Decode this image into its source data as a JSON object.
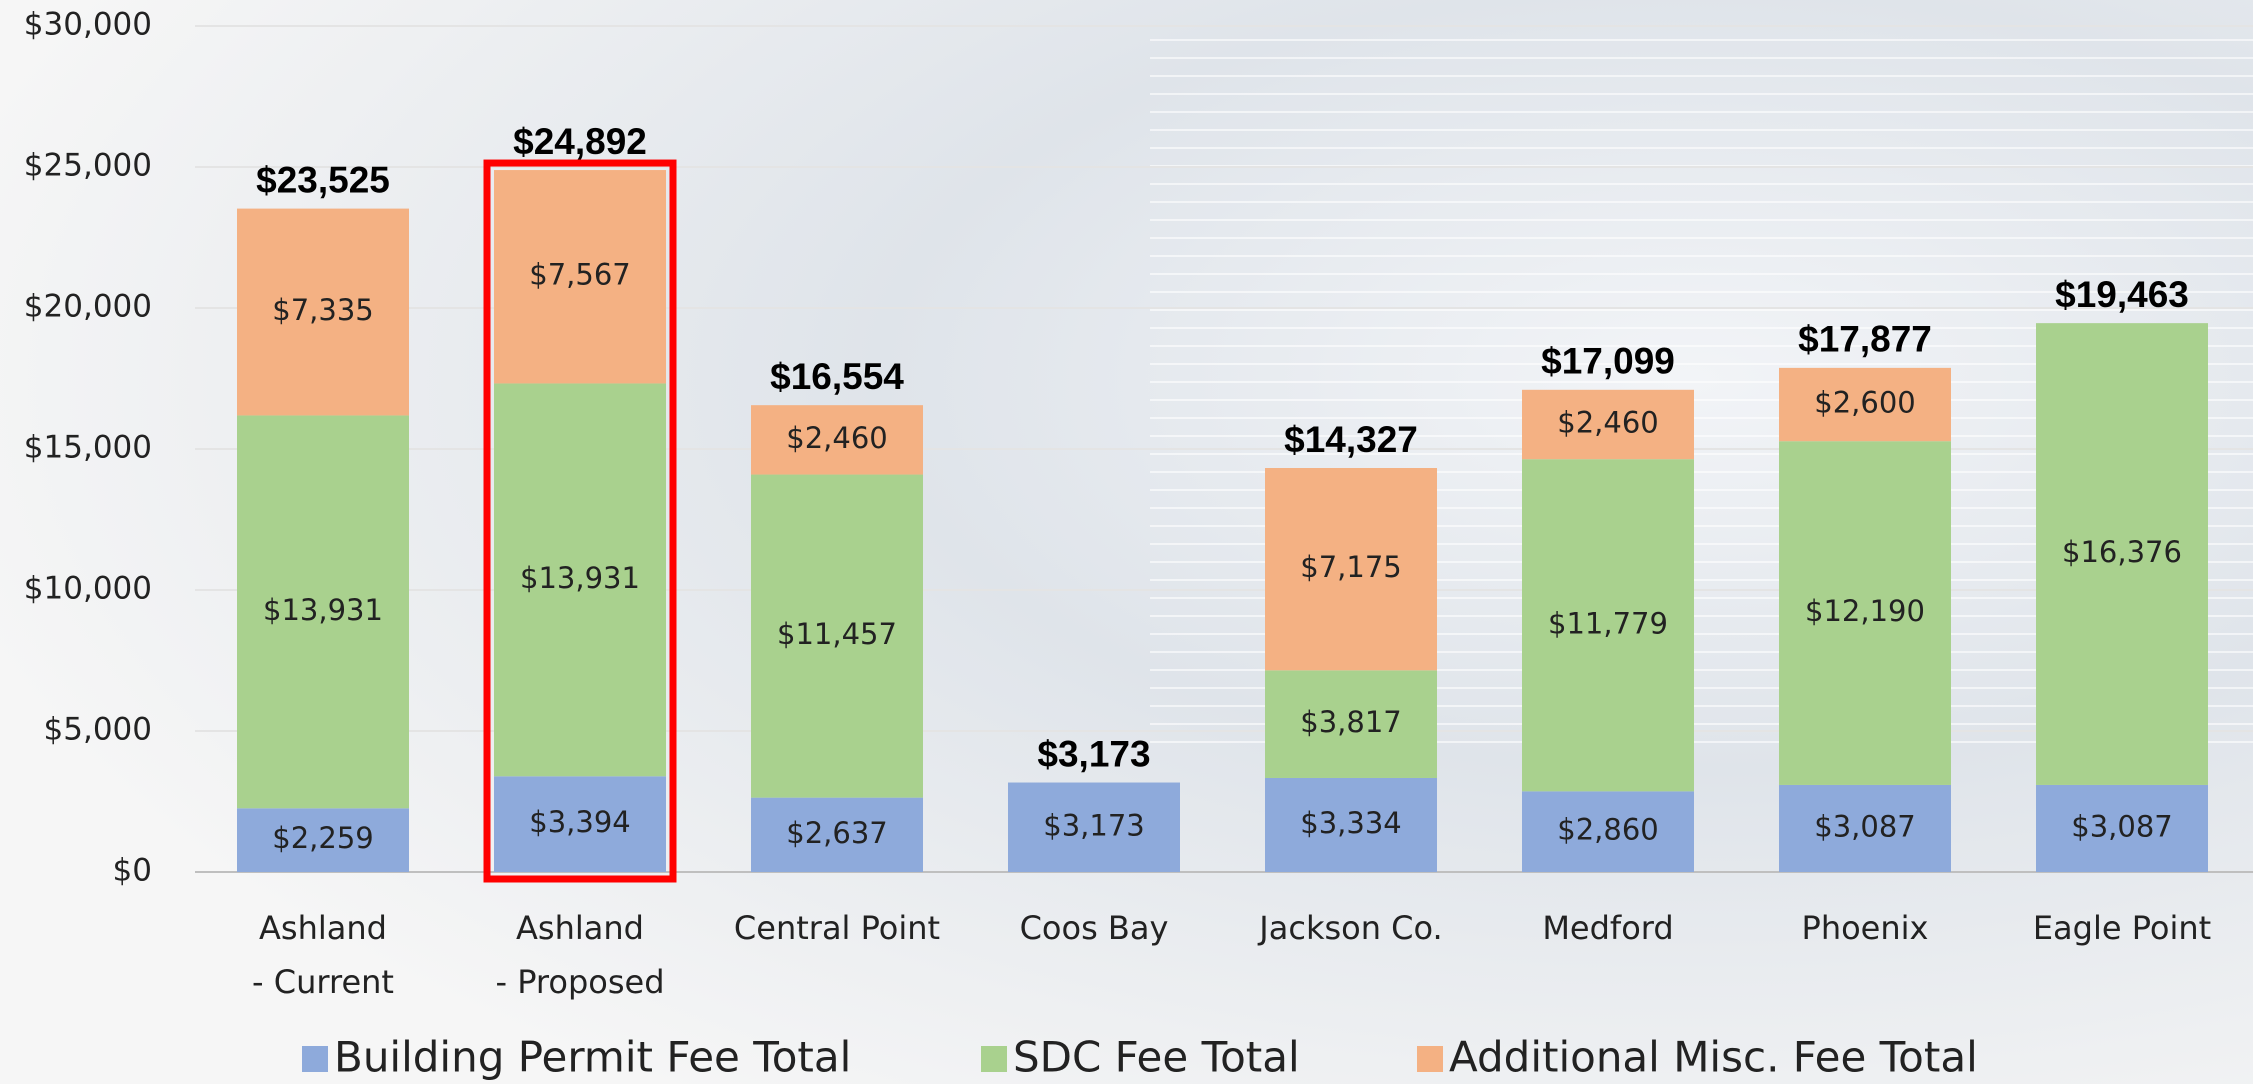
{
  "chart_data": {
    "type": "stacked_bar",
    "categories": [
      [
        "Ashland",
        "- Current"
      ],
      [
        "Ashland",
        "- Proposed"
      ],
      [
        "Central Point"
      ],
      [
        "Coos Bay"
      ],
      [
        "Jackson Co."
      ],
      [
        "Medford"
      ],
      [
        "Phoenix"
      ],
      [
        "Eagle Point"
      ]
    ],
    "series": [
      {
        "name": "Building Permit Fee Total",
        "color": "#8eaadb",
        "values": [
          2259,
          3394,
          2637,
          3173,
          3334,
          2860,
          3087,
          3087
        ],
        "value_labels": [
          "$2,259",
          "$3,394",
          "$2,637",
          "$3,173",
          "$3,334",
          "$2,860",
          "$3,087",
          "$3,087"
        ]
      },
      {
        "name": "SDC Fee Total",
        "color": "#a9d18e",
        "values": [
          13931,
          13931,
          11457,
          null,
          3817,
          11779,
          12190,
          16376
        ],
        "value_labels": [
          "$13,931",
          "$13,931",
          "$11,457",
          null,
          "$3,817",
          "$11,779",
          "$12,190",
          "$16,376"
        ]
      },
      {
        "name": "Additional Misc. Fee Total",
        "color": "#f4b183",
        "values": [
          7335,
          7567,
          2460,
          null,
          7175,
          2460,
          2600,
          null
        ],
        "value_labels": [
          "$7,335",
          "$7,567",
          "$2,460",
          null,
          "$7,175",
          "$2,460",
          "$2,600",
          null
        ]
      }
    ],
    "totals": [
      23525,
      24892,
      16554,
      3173,
      14327,
      17099,
      17877,
      19463
    ],
    "total_labels": [
      "$23,525",
      "$24,892",
      "$16,554",
      "$3,173",
      "$14,327",
      "$17,099",
      "$17,877",
      "$19,463"
    ],
    "ylim": [
      0,
      30000
    ],
    "yticks": [
      {
        "value": 0,
        "label": "$0"
      },
      {
        "value": 5000,
        "label": "$5,000"
      },
      {
        "value": 10000,
        "label": "$10,000"
      },
      {
        "value": 15000,
        "label": "$15,000"
      },
      {
        "value": 20000,
        "label": "$20,000"
      },
      {
        "value": 25000,
        "label": "$25,000"
      },
      {
        "value": 30000,
        "label": "$30,000"
      }
    ],
    "highlight_index": 1,
    "highlight_color": "#ff0000",
    "legend": "bottom"
  }
}
